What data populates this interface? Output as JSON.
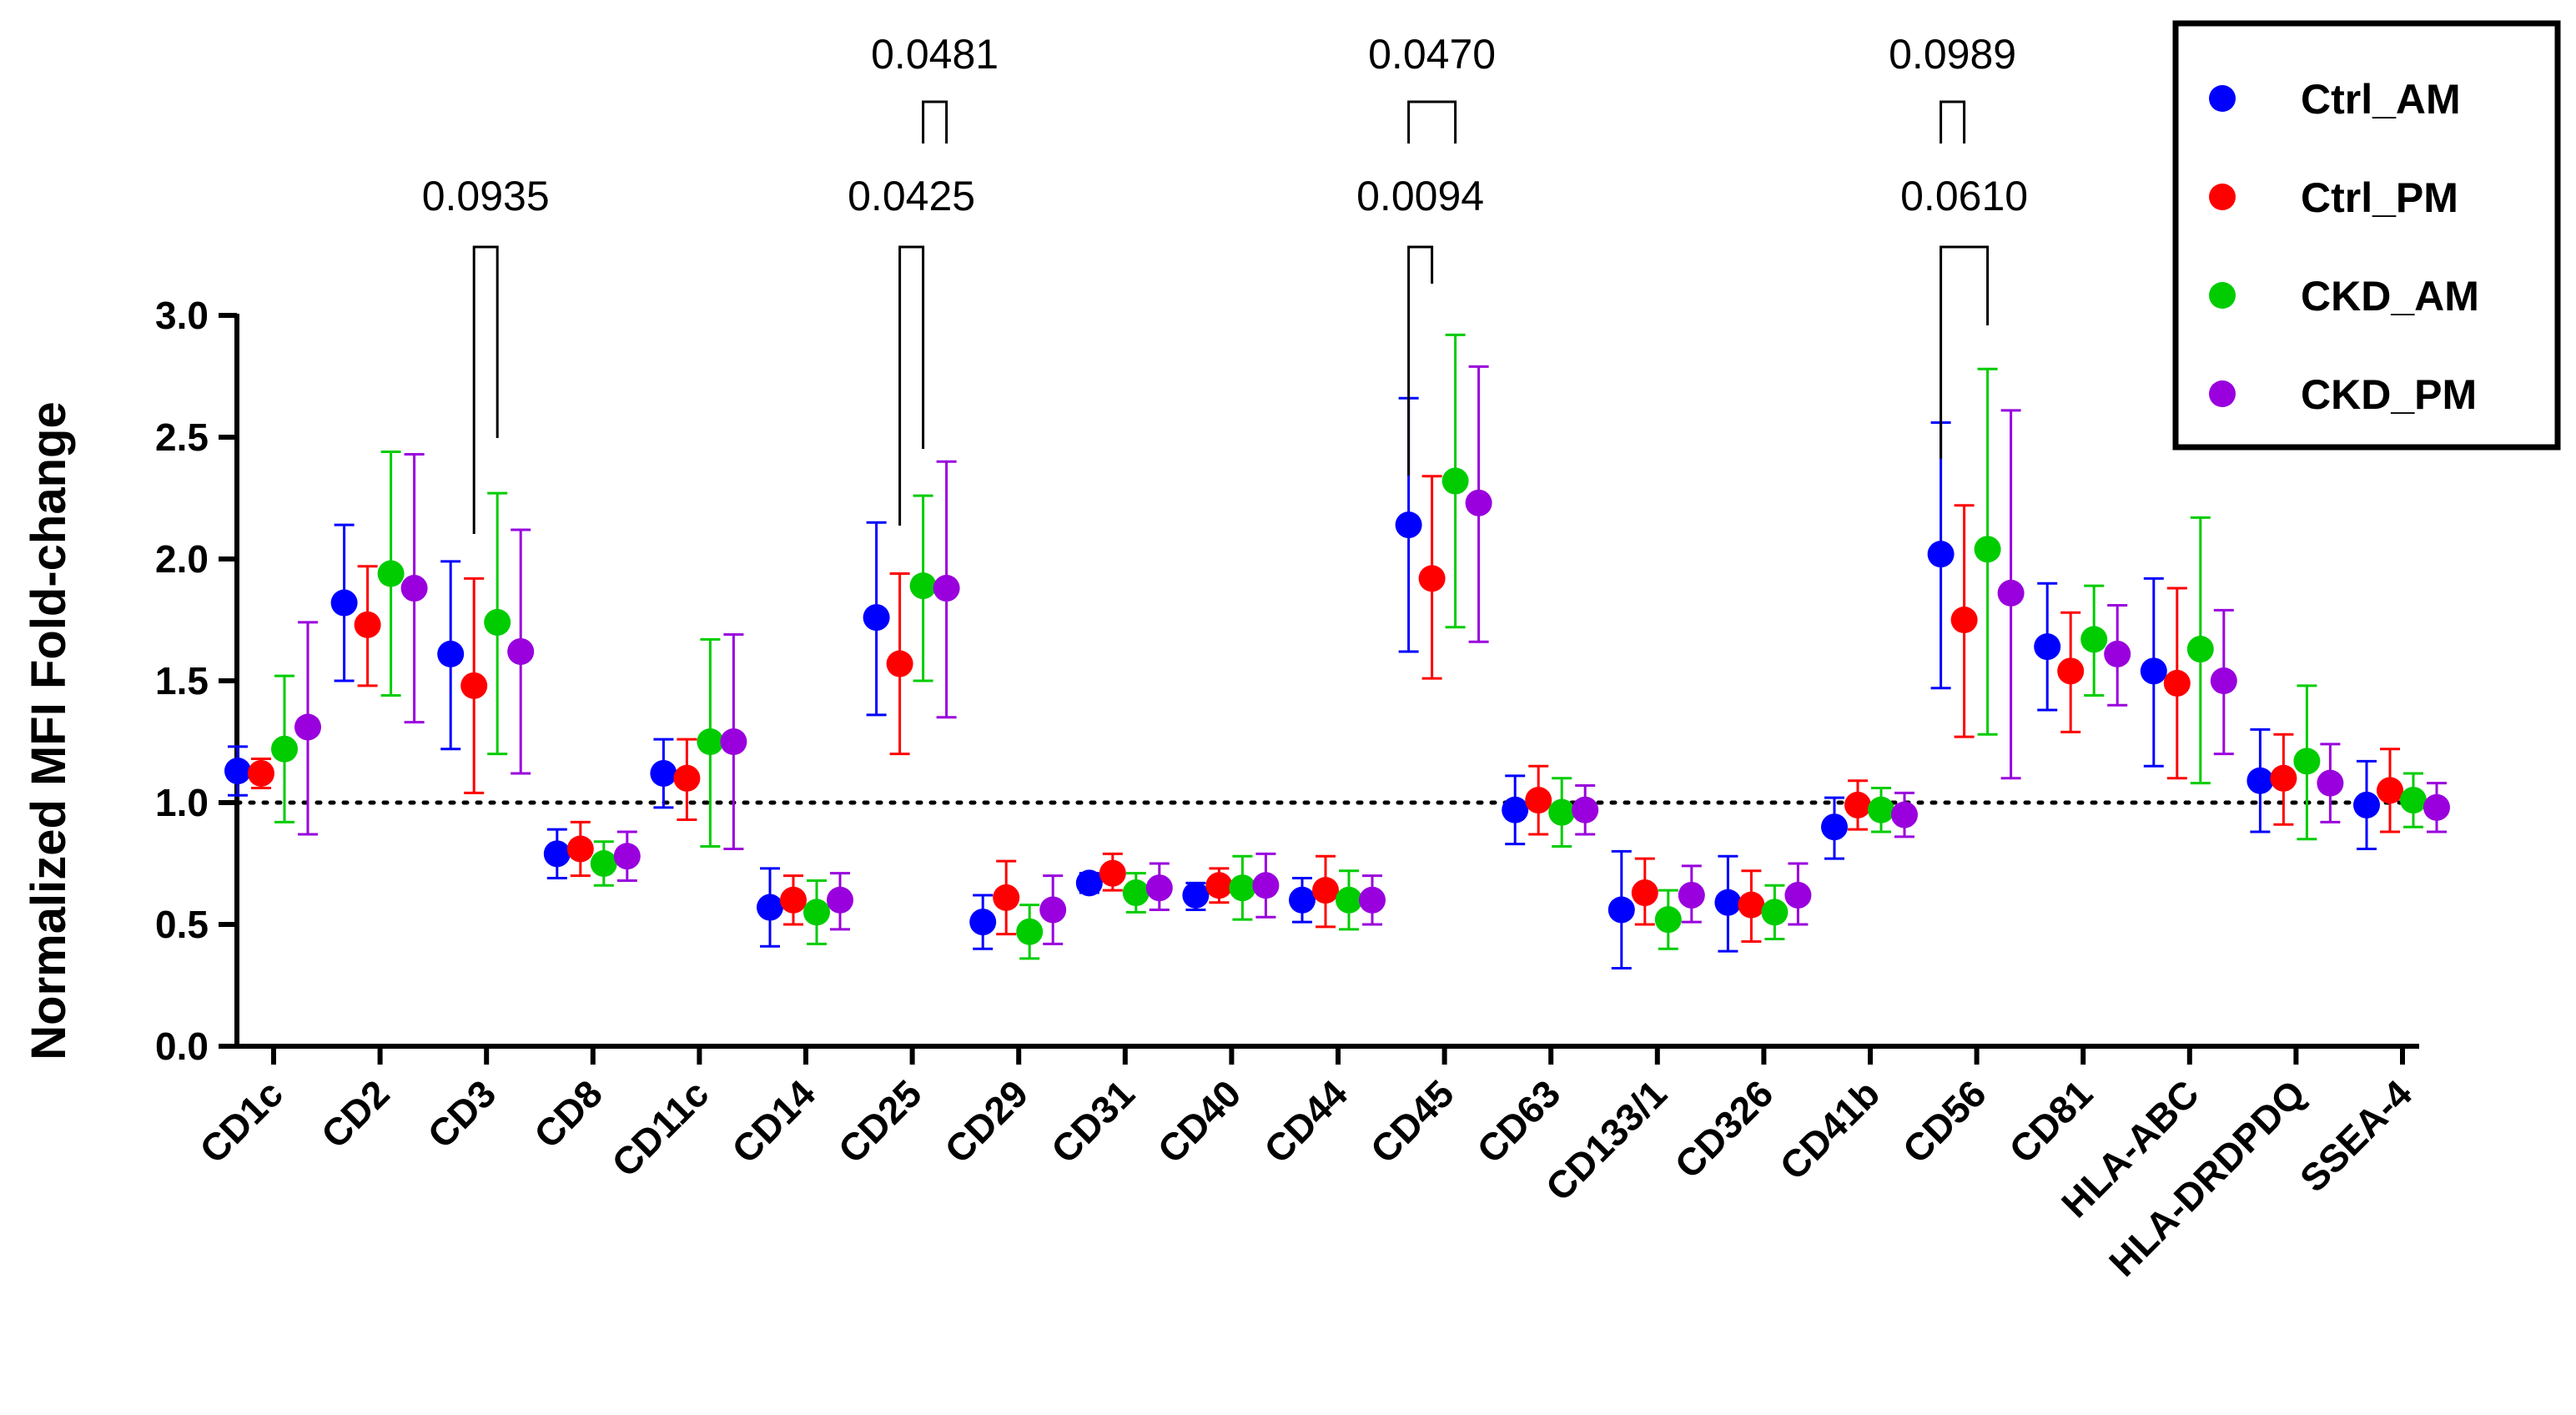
{
  "chart_data": {
    "type": "scatter",
    "ylabel": "Normalized MFI Fold-change",
    "xlabel": "",
    "ylim": [
      0,
      3.0
    ],
    "yticks": [
      "0.0",
      "0.5",
      "1.0",
      "1.5",
      "2.0",
      "2.5",
      "3.0"
    ],
    "reference_line": 1.0,
    "legend_position": "top-right",
    "categories": [
      "CD1c",
      "CD2",
      "CD3",
      "CD8",
      "CD11c",
      "CD14",
      "CD25",
      "CD29",
      "CD31",
      "CD40",
      "CD44",
      "CD45",
      "CD63",
      "CD133/1",
      "CD326",
      "CD41b",
      "CD56",
      "CD81",
      "HLA-ABC",
      "HLA-DRDPDQ",
      "SSEA-4"
    ],
    "series": [
      {
        "name": "Ctrl_AM",
        "color": "#0000ff",
        "values": [
          1.13,
          1.82,
          1.61,
          0.79,
          1.12,
          0.57,
          1.76,
          0.51,
          0.67,
          0.62,
          0.6,
          2.14,
          0.97,
          0.56,
          0.59,
          0.9,
          2.02,
          1.64,
          1.54,
          1.09,
          0.99
        ],
        "err_low": [
          1.03,
          1.5,
          1.22,
          0.69,
          0.98,
          0.41,
          1.36,
          0.4,
          0.63,
          0.56,
          0.51,
          1.62,
          0.83,
          0.32,
          0.39,
          0.77,
          1.47,
          1.38,
          1.15,
          0.88,
          0.81
        ],
        "err_high": [
          1.23,
          2.14,
          1.99,
          0.89,
          1.26,
          0.73,
          2.15,
          0.62,
          0.71,
          0.67,
          0.69,
          2.66,
          1.11,
          0.8,
          0.78,
          1.02,
          2.56,
          1.9,
          1.92,
          1.3,
          1.17
        ]
      },
      {
        "name": "Ctrl_PM",
        "color": "#ff0000",
        "values": [
          1.12,
          1.73,
          1.48,
          0.81,
          1.1,
          0.6,
          1.57,
          0.61,
          0.71,
          0.66,
          0.64,
          1.92,
          1.01,
          0.63,
          0.58,
          0.99,
          1.75,
          1.54,
          1.49,
          1.1,
          1.05
        ],
        "err_low": [
          1.06,
          1.48,
          1.04,
          0.7,
          0.93,
          0.5,
          1.2,
          0.46,
          0.64,
          0.59,
          0.49,
          1.51,
          0.87,
          0.5,
          0.43,
          0.89,
          1.27,
          1.29,
          1.1,
          0.91,
          0.88
        ],
        "err_high": [
          1.18,
          1.97,
          1.92,
          0.92,
          1.26,
          0.7,
          1.94,
          0.76,
          0.79,
          0.73,
          0.78,
          2.34,
          1.15,
          0.77,
          0.72,
          1.09,
          2.22,
          1.78,
          1.88,
          1.28,
          1.22
        ]
      },
      {
        "name": "CKD_AM",
        "color": "#00cc00",
        "values": [
          1.22,
          1.94,
          1.74,
          0.75,
          1.25,
          0.55,
          1.89,
          0.47,
          0.63,
          0.65,
          0.6,
          2.32,
          0.96,
          0.52,
          0.55,
          0.97,
          2.04,
          1.67,
          1.63,
          1.17,
          1.01
        ],
        "err_low": [
          0.92,
          1.44,
          1.2,
          0.66,
          0.82,
          0.42,
          1.5,
          0.36,
          0.55,
          0.52,
          0.48,
          1.72,
          0.82,
          0.4,
          0.44,
          0.88,
          1.28,
          1.44,
          1.08,
          0.85,
          0.9
        ],
        "err_high": [
          1.52,
          2.44,
          2.27,
          0.84,
          1.67,
          0.68,
          2.26,
          0.58,
          0.71,
          0.78,
          0.72,
          2.92,
          1.1,
          0.64,
          0.66,
          1.06,
          2.78,
          1.89,
          2.17,
          1.48,
          1.12
        ]
      },
      {
        "name": "CKD_PM",
        "color": "#9900dd",
        "values": [
          1.31,
          1.88,
          1.62,
          0.78,
          1.25,
          0.6,
          1.88,
          0.56,
          0.65,
          0.66,
          0.6,
          2.23,
          0.97,
          0.62,
          0.62,
          0.95,
          1.86,
          1.61,
          1.5,
          1.08,
          0.98
        ],
        "err_low": [
          0.87,
          1.33,
          1.12,
          0.68,
          0.81,
          0.48,
          1.35,
          0.42,
          0.56,
          0.53,
          0.5,
          1.66,
          0.87,
          0.51,
          0.5,
          0.86,
          1.1,
          1.4,
          1.2,
          0.92,
          0.88
        ],
        "err_high": [
          1.74,
          2.43,
          2.12,
          0.88,
          1.69,
          0.71,
          2.4,
          0.7,
          0.75,
          0.79,
          0.7,
          2.79,
          1.07,
          0.74,
          0.75,
          1.04,
          2.61,
          1.81,
          1.79,
          1.24,
          1.08
        ]
      }
    ],
    "annotations": [
      {
        "category": "CD3",
        "text": "0.0935",
        "from": "Ctrl_PM",
        "to": "CKD_AM"
      },
      {
        "category": "CD25",
        "text": "0.0425",
        "from": "Ctrl_PM",
        "to": "CKD_AM"
      },
      {
        "category": "CD25",
        "text": "0.0481",
        "from": "CKD_AM",
        "to": "CKD_PM"
      },
      {
        "category": "CD45",
        "text": "0.0094",
        "from": "Ctrl_AM",
        "to": "Ctrl_PM"
      },
      {
        "category": "CD45",
        "text": "0.0470",
        "from": "Ctrl_AM",
        "to": "CKD_AM"
      },
      {
        "category": "CD56",
        "text": "0.0610",
        "from": "Ctrl_AM",
        "to": "CKD_AM"
      },
      {
        "category": "CD56",
        "text": "0.0989",
        "from": "Ctrl_AM",
        "to": "Ctrl_PM"
      }
    ]
  }
}
